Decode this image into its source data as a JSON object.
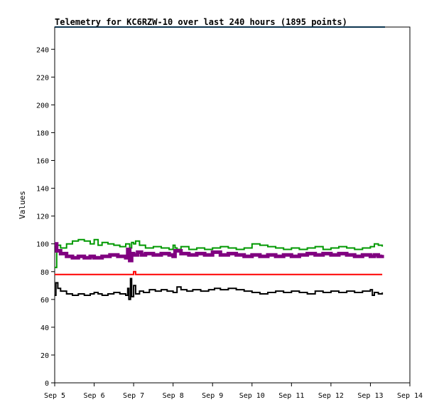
{
  "chart_data": {
    "type": "line",
    "title": "Telemetry for KC6RZW-10 over last 240 hours (1895 points)",
    "xlabel": "",
    "ylabel": "Values",
    "ylim": [
      0,
      256
    ],
    "xlim": [
      0,
      9
    ],
    "y_ticks": [
      0,
      20,
      40,
      60,
      80,
      100,
      120,
      140,
      160,
      180,
      200,
      220,
      240
    ],
    "x_ticks": [
      {
        "x": 0,
        "label": "Sep 5"
      },
      {
        "x": 1,
        "label": "Sep 6"
      },
      {
        "x": 2,
        "label": "Sep 7"
      },
      {
        "x": 3,
        "label": "Sep 8"
      },
      {
        "x": 4,
        "label": "Sep 9"
      },
      {
        "x": 5,
        "label": "Sep 10"
      },
      {
        "x": 6,
        "label": "Sep 11"
      },
      {
        "x": 7,
        "label": "Sep 12"
      },
      {
        "x": 8,
        "label": "Sep 13"
      },
      {
        "x": 9,
        "label": "Sep 14"
      }
    ],
    "grid": false,
    "series": [
      {
        "color": "#009900",
        "width": 2,
        "x": [
          0,
          0.05,
          0.15,
          0.3,
          0.45,
          0.6,
          0.75,
          0.9,
          1.0,
          1.1,
          1.2,
          1.35,
          1.5,
          1.65,
          1.8,
          1.9,
          1.95,
          2.0,
          2.05,
          2.15,
          2.3,
          2.5,
          2.7,
          2.9,
          3.0,
          3.05,
          3.1,
          3.2,
          3.4,
          3.6,
          3.8,
          4.0,
          4.2,
          4.4,
          4.6,
          4.8,
          5.0,
          5.2,
          5.4,
          5.6,
          5.8,
          6.0,
          6.2,
          6.4,
          6.6,
          6.8,
          7.0,
          7.2,
          7.4,
          7.6,
          7.8,
          8.0,
          8.1,
          8.2,
          8.3
        ],
        "values": [
          83,
          99,
          97,
          100,
          102,
          103,
          102,
          100,
          103,
          99,
          101,
          100,
          99,
          98,
          100,
          97,
          101,
          100,
          102,
          99,
          97,
          98,
          97,
          96,
          99,
          97,
          96,
          98,
          96,
          97,
          96,
          97,
          98,
          97,
          96,
          97,
          100,
          99,
          98,
          97,
          96,
          97,
          96,
          97,
          98,
          96,
          97,
          98,
          97,
          96,
          97,
          98,
          100,
          99,
          98
        ]
      },
      {
        "color": "#800080",
        "width": 5,
        "x": [
          0,
          0.05,
          0.15,
          0.3,
          0.45,
          0.6,
          0.75,
          0.9,
          1.0,
          1.2,
          1.4,
          1.6,
          1.8,
          1.85,
          1.9,
          1.95,
          2.0,
          2.1,
          2.2,
          2.3,
          2.5,
          2.7,
          2.9,
          3.0,
          3.05,
          3.2,
          3.4,
          3.6,
          3.8,
          4.0,
          4.2,
          4.4,
          4.6,
          4.8,
          5.0,
          5.2,
          5.4,
          5.6,
          5.8,
          6.0,
          6.2,
          6.4,
          6.6,
          6.8,
          7.0,
          7.2,
          7.4,
          7.6,
          7.8,
          8.0,
          8.1,
          8.2,
          8.3
        ],
        "values": [
          100,
          95,
          93,
          91,
          90,
          91,
          90,
          91,
          90,
          91,
          92,
          91,
          90,
          96,
          88,
          93,
          92,
          94,
          92,
          93,
          92,
          93,
          92,
          91,
          95,
          93,
          92,
          93,
          92,
          94,
          92,
          93,
          92,
          91,
          92,
          91,
          92,
          91,
          92,
          91,
          92,
          93,
          92,
          93,
          92,
          93,
          92,
          91,
          92,
          91,
          92,
          91,
          92
        ]
      },
      {
        "color": "#ff0000",
        "width": 2,
        "x": [
          0,
          0.5,
          1.0,
          1.5,
          1.9,
          1.95,
          2.0,
          2.05,
          2.5,
          3.0,
          4.0,
          5.0,
          6.0,
          7.0,
          8.0,
          8.3
        ],
        "values": [
          78,
          78,
          78,
          78,
          78,
          78,
          80,
          78,
          78,
          78,
          78,
          78,
          78,
          78,
          78,
          78
        ]
      },
      {
        "color": "#000000",
        "width": 2,
        "x": [
          0,
          0.03,
          0.08,
          0.15,
          0.3,
          0.45,
          0.6,
          0.75,
          0.9,
          1.0,
          1.1,
          1.2,
          1.35,
          1.5,
          1.65,
          1.8,
          1.85,
          1.88,
          1.92,
          1.95,
          2.0,
          2.05,
          2.15,
          2.25,
          2.4,
          2.55,
          2.7,
          2.85,
          3.0,
          3.1,
          3.2,
          3.35,
          3.5,
          3.7,
          3.9,
          4.05,
          4.2,
          4.4,
          4.6,
          4.8,
          5.0,
          5.2,
          5.4,
          5.6,
          5.8,
          6.0,
          6.2,
          6.4,
          6.6,
          6.8,
          7.0,
          7.2,
          7.4,
          7.6,
          7.8,
          8.0,
          8.05,
          8.1,
          8.2,
          8.3
        ],
        "values": [
          63,
          72,
          68,
          66,
          64,
          63,
          64,
          63,
          64,
          65,
          64,
          63,
          64,
          65,
          64,
          63,
          68,
          60,
          75,
          62,
          70,
          64,
          66,
          65,
          67,
          66,
          67,
          66,
          65,
          69,
          67,
          66,
          67,
          66,
          67,
          68,
          67,
          68,
          67,
          66,
          65,
          64,
          65,
          66,
          65,
          66,
          65,
          64,
          66,
          65,
          66,
          65,
          66,
          65,
          66,
          67,
          63,
          65,
          64,
          65
        ]
      }
    ],
    "reference_line": {
      "y": 256,
      "color": "#1a6aa0"
    }
  }
}
